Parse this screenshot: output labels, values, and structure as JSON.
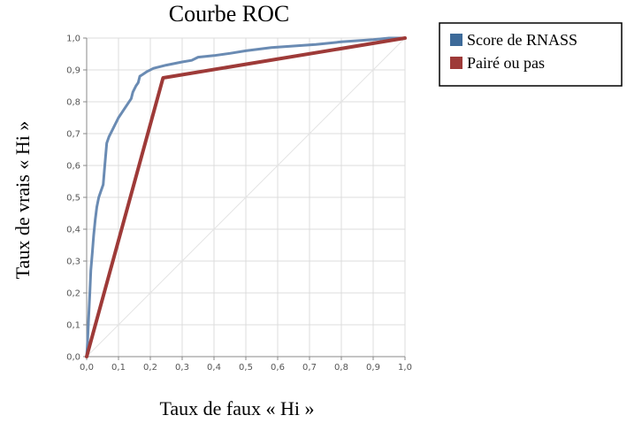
{
  "chart_data": {
    "type": "line",
    "title": "Courbe ROC",
    "xlabel": "Taux de faux « Hi »",
    "ylabel": "Taux de vrais « Hi »",
    "xlim": [
      0,
      1
    ],
    "ylim": [
      0,
      1
    ],
    "x_ticks": [
      "0,0",
      "0,1",
      "0,2",
      "0,3",
      "0,4",
      "0,5",
      "0,6",
      "0,7",
      "0,8",
      "0,9",
      "1,0"
    ],
    "y_ticks": [
      "0,0",
      "0,1",
      "0,2",
      "0,3",
      "0,4",
      "0,5",
      "0,6",
      "0,7",
      "0,8",
      "0,9",
      "1,0"
    ],
    "grid": true,
    "legend_position": "top-right",
    "diagonal_reference": true,
    "series": [
      {
        "name": "Score de RNASS",
        "color": "#6a8bb3",
        "legend_color": "#3d6a99",
        "points": [
          [
            0.0,
            0.0
          ],
          [
            0.003,
            0.05
          ],
          [
            0.006,
            0.12
          ],
          [
            0.01,
            0.2
          ],
          [
            0.013,
            0.27
          ],
          [
            0.018,
            0.33
          ],
          [
            0.022,
            0.38
          ],
          [
            0.027,
            0.43
          ],
          [
            0.032,
            0.47
          ],
          [
            0.038,
            0.5
          ],
          [
            0.045,
            0.52
          ],
          [
            0.052,
            0.54
          ],
          [
            0.057,
            0.6
          ],
          [
            0.063,
            0.67
          ],
          [
            0.07,
            0.69
          ],
          [
            0.08,
            0.71
          ],
          [
            0.1,
            0.75
          ],
          [
            0.12,
            0.78
          ],
          [
            0.14,
            0.81
          ],
          [
            0.145,
            0.83
          ],
          [
            0.15,
            0.84
          ],
          [
            0.155,
            0.85
          ],
          [
            0.162,
            0.86
          ],
          [
            0.167,
            0.88
          ],
          [
            0.175,
            0.885
          ],
          [
            0.19,
            0.895
          ],
          [
            0.21,
            0.905
          ],
          [
            0.25,
            0.915
          ],
          [
            0.3,
            0.925
          ],
          [
            0.33,
            0.93
          ],
          [
            0.35,
            0.94
          ],
          [
            0.4,
            0.945
          ],
          [
            0.45,
            0.952
          ],
          [
            0.5,
            0.96
          ],
          [
            0.58,
            0.97
          ],
          [
            0.65,
            0.975
          ],
          [
            0.72,
            0.98
          ],
          [
            0.8,
            0.988
          ],
          [
            0.9,
            0.995
          ],
          [
            0.95,
            1.0
          ],
          [
            1.0,
            1.0
          ]
        ]
      },
      {
        "name": "Pairé ou pas",
        "color": "#9e3a38",
        "legend_color": "#9e3a38",
        "points": [
          [
            0.0,
            0.0
          ],
          [
            0.24,
            0.875
          ],
          [
            1.0,
            1.0
          ]
        ]
      }
    ]
  }
}
